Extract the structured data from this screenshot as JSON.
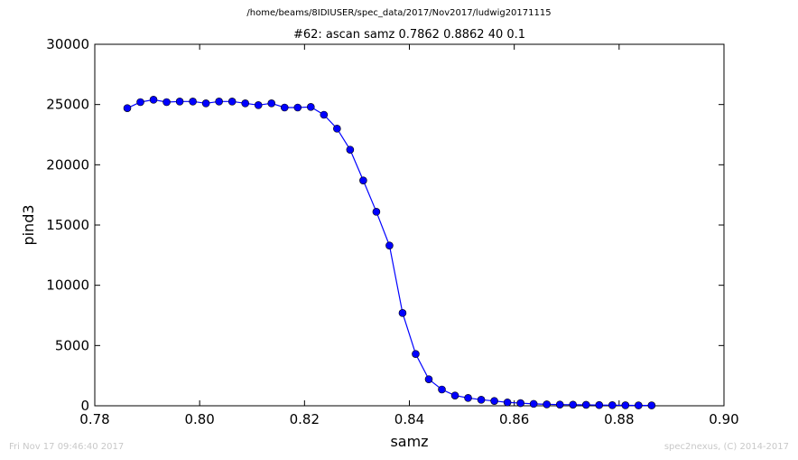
{
  "header": {
    "path": "/home/beams/8IDIUSER/spec_data/2017/Nov2017/ludwig20171115"
  },
  "footer": {
    "timestamp": "Fri Nov 17 09:46:40 2017",
    "credit": "spec2nexus, (C) 2014-2017"
  },
  "chart_data": {
    "type": "line",
    "title": "#62: ascan  samz 0.7862 0.8862  40 0.1",
    "xlabel": "samz",
    "ylabel": "pind3",
    "xlim": [
      0.78,
      0.9
    ],
    "ylim": [
      0,
      30000
    ],
    "xticks": [
      "0.78",
      "0.80",
      "0.82",
      "0.84",
      "0.86",
      "0.88",
      "0.90"
    ],
    "xtick_values": [
      0.78,
      0.8,
      0.82,
      0.84,
      0.86,
      0.88,
      0.9
    ],
    "yticks": [
      "0",
      "5000",
      "10000",
      "15000",
      "20000",
      "25000",
      "30000"
    ],
    "ytick_values": [
      0,
      5000,
      10000,
      15000,
      20000,
      25000,
      30000
    ],
    "grid": false,
    "line_color": "#0000ff",
    "marker": "circle",
    "x": [
      0.7862,
      0.7887,
      0.7912,
      0.7937,
      0.7962,
      0.7987,
      0.8012,
      0.8037,
      0.8062,
      0.8087,
      0.8112,
      0.8137,
      0.8162,
      0.8187,
      0.8212,
      0.8237,
      0.8262,
      0.8287,
      0.8312,
      0.8337,
      0.8362,
      0.8387,
      0.8412,
      0.8437,
      0.8462,
      0.8487,
      0.8512,
      0.8537,
      0.8562,
      0.8587,
      0.8612,
      0.8637,
      0.8662,
      0.8687,
      0.8712,
      0.8737,
      0.8762,
      0.8787,
      0.8812,
      0.8837,
      0.8862
    ],
    "y": [
      24700,
      25200,
      25400,
      25200,
      25250,
      25250,
      25100,
      25250,
      25250,
      25100,
      24950,
      25100,
      24750,
      24750,
      24800,
      24150,
      23000,
      21250,
      18700,
      16100,
      13300,
      7700,
      4300,
      2200,
      1350,
      850,
      650,
      500,
      400,
      280,
      220,
      160,
      120,
      100,
      90,
      80,
      60,
      50,
      40,
      30,
      30
    ]
  }
}
